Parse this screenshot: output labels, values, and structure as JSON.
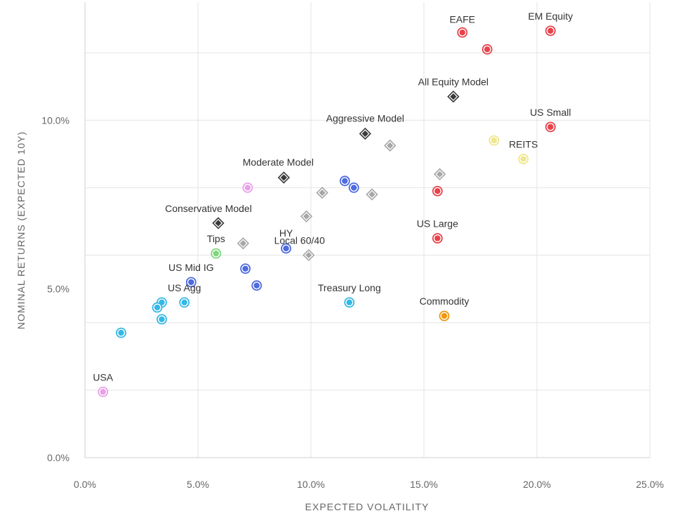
{
  "chart_data": {
    "type": "scatter",
    "xlabel": "EXPECTED VOLATILITY",
    "ylabel": "NOMINAL RETURNS (EXPECTED 10Y)",
    "xlim": [
      0,
      25
    ],
    "ylim": [
      0,
      13.5
    ],
    "x_ticks": [
      {
        "value": 0,
        "label": "0.0%"
      },
      {
        "value": 5,
        "label": "5.0%"
      },
      {
        "value": 10,
        "label": "10.0%"
      },
      {
        "value": 15,
        "label": "15.0%"
      },
      {
        "value": 20,
        "label": "20.0%"
      },
      {
        "value": 25,
        "label": "25.0%"
      }
    ],
    "y_ticks": [
      {
        "value": 0,
        "label": "0.0%"
      },
      {
        "value": 5,
        "label": "5.0%"
      },
      {
        "value": 10,
        "label": "10.0%"
      }
    ],
    "y_gridlines": [
      0,
      2,
      4,
      6,
      8,
      10,
      12
    ],
    "grid": true,
    "colors": {
      "equity": "#e8424a",
      "fixed_income": "#35b8e6",
      "credit": "#4d6ae0",
      "reits": "#f0e68c",
      "tips": "#7ed67e",
      "commodity": "#f0960f",
      "usa": "#e8a0e8",
      "model_dark": "#3a3a3a",
      "model_light": "#a6a6a6"
    },
    "points": [
      {
        "x": 16.7,
        "y": 12.6,
        "shape": "circle",
        "group": "equity",
        "label": "EAFE"
      },
      {
        "x": 17.8,
        "y": 12.1,
        "shape": "circle",
        "group": "equity",
        "label": ""
      },
      {
        "x": 20.6,
        "y": 12.65,
        "shape": "circle",
        "group": "equity",
        "label": "EM Equity"
      },
      {
        "x": 20.6,
        "y": 9.8,
        "shape": "circle",
        "group": "equity",
        "label": "US Small"
      },
      {
        "x": 15.6,
        "y": 7.9,
        "shape": "circle",
        "group": "equity",
        "label": ""
      },
      {
        "x": 15.6,
        "y": 6.5,
        "shape": "circle",
        "group": "equity",
        "label": "US Large"
      },
      {
        "x": 18.1,
        "y": 9.4,
        "shape": "circle",
        "group": "reits",
        "label": ""
      },
      {
        "x": 19.4,
        "y": 8.85,
        "shape": "circle",
        "group": "reits",
        "label": "REITS"
      },
      {
        "x": 15.9,
        "y": 4.2,
        "shape": "circle",
        "group": "commodity",
        "label": "Commodity"
      },
      {
        "x": 11.5,
        "y": 8.2,
        "shape": "circle",
        "group": "credit",
        "label": ""
      },
      {
        "x": 11.9,
        "y": 8.0,
        "shape": "circle",
        "group": "credit",
        "label": ""
      },
      {
        "x": 8.9,
        "y": 6.2,
        "shape": "circle",
        "group": "credit",
        "label": "HY"
      },
      {
        "x": 7.1,
        "y": 5.6,
        "shape": "circle",
        "group": "credit",
        "label": ""
      },
      {
        "x": 7.6,
        "y": 5.1,
        "shape": "circle",
        "group": "credit",
        "label": ""
      },
      {
        "x": 4.7,
        "y": 5.2,
        "shape": "circle",
        "group": "credit",
        "label": "US Mid IG"
      },
      {
        "x": 4.4,
        "y": 4.6,
        "shape": "circle",
        "group": "fixed_income",
        "label": "US Agg"
      },
      {
        "x": 3.4,
        "y": 4.6,
        "shape": "circle",
        "group": "fixed_income",
        "label": ""
      },
      {
        "x": 3.2,
        "y": 4.45,
        "shape": "circle",
        "group": "fixed_income",
        "label": ""
      },
      {
        "x": 3.4,
        "y": 4.1,
        "shape": "circle",
        "group": "fixed_income",
        "label": ""
      },
      {
        "x": 1.6,
        "y": 3.7,
        "shape": "circle",
        "group": "fixed_income",
        "label": ""
      },
      {
        "x": 11.7,
        "y": 4.6,
        "shape": "circle",
        "group": "fixed_income",
        "label": "Treasury Long"
      },
      {
        "x": 5.8,
        "y": 6.05,
        "shape": "circle",
        "group": "tips",
        "label": "Tips"
      },
      {
        "x": 7.2,
        "y": 8.0,
        "shape": "circle",
        "group": "usa",
        "label": ""
      },
      {
        "x": 0.8,
        "y": 1.95,
        "shape": "circle",
        "group": "usa",
        "label": "USA"
      },
      {
        "x": 16.3,
        "y": 10.7,
        "shape": "diamond",
        "group": "model_dark",
        "label": "All Equity Model"
      },
      {
        "x": 12.4,
        "y": 9.6,
        "shape": "diamond",
        "group": "model_dark",
        "label": "Aggressive Model"
      },
      {
        "x": 8.8,
        "y": 8.3,
        "shape": "diamond",
        "group": "model_dark",
        "label": "Moderate Model"
      },
      {
        "x": 5.9,
        "y": 6.95,
        "shape": "diamond",
        "group": "model_dark",
        "label": "Conservative Model"
      },
      {
        "x": 13.5,
        "y": 9.25,
        "shape": "diamond",
        "group": "model_light",
        "label": ""
      },
      {
        "x": 15.7,
        "y": 8.4,
        "shape": "diamond",
        "group": "model_light",
        "label": ""
      },
      {
        "x": 10.5,
        "y": 7.85,
        "shape": "diamond",
        "group": "model_light",
        "label": ""
      },
      {
        "x": 12.7,
        "y": 7.8,
        "shape": "diamond",
        "group": "model_light",
        "label": ""
      },
      {
        "x": 9.8,
        "y": 7.15,
        "shape": "diamond",
        "group": "model_light",
        "label": ""
      },
      {
        "x": 7.0,
        "y": 6.35,
        "shape": "diamond",
        "group": "model_light",
        "label": ""
      },
      {
        "x": 9.9,
        "y": 6.0,
        "shape": "diamond",
        "group": "model_light",
        "label": "Local 60/40"
      }
    ]
  }
}
